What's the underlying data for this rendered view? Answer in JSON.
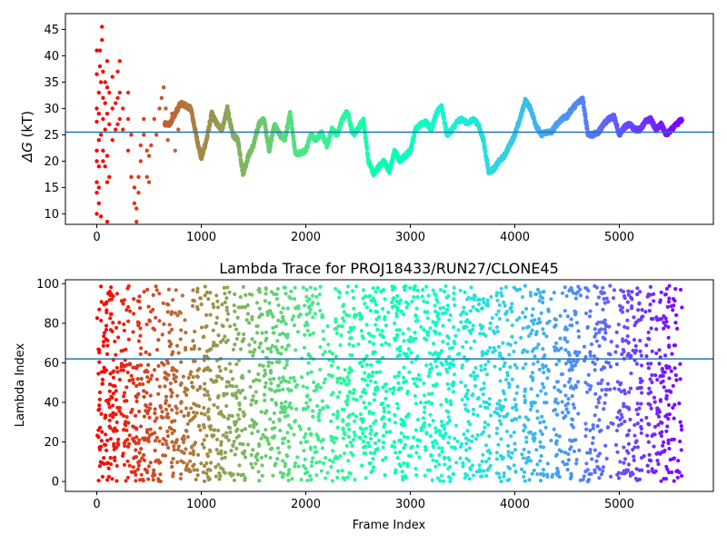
{
  "chart_data": [
    {
      "type": "scatter",
      "title": "",
      "xlabel": "",
      "ylabel": "ΔG (kT)",
      "ylabel_main": "ΔG",
      "ylabel_unit": " (kT)",
      "xlim": [
        -300,
        5900
      ],
      "ylim": [
        8,
        48
      ],
      "xticks": [
        0,
        1000,
        2000,
        3000,
        4000,
        5000
      ],
      "yticks": [
        10,
        15,
        20,
        25,
        30,
        35,
        40,
        45
      ],
      "reference_line": 25.5,
      "reference_line_color": "#1f77b4",
      "colormap": "rainbow (red at start, violet at end)",
      "x_range": [
        0,
        5600
      ],
      "trace_keypoints": [
        [
          0,
          28
        ],
        [
          100,
          27
        ],
        [
          200,
          28
        ],
        [
          300,
          24
        ],
        [
          400,
          22
        ],
        [
          500,
          25
        ],
        [
          600,
          27
        ],
        [
          700,
          27
        ],
        [
          800,
          31
        ],
        [
          900,
          30
        ],
        [
          950,
          25
        ],
        [
          1000,
          20.5
        ],
        [
          1050,
          24
        ],
        [
          1100,
          29
        ],
        [
          1150,
          27
        ],
        [
          1200,
          26
        ],
        [
          1250,
          30
        ],
        [
          1300,
          25
        ],
        [
          1350,
          24
        ],
        [
          1400,
          17.5
        ],
        [
          1450,
          21
        ],
        [
          1500,
          23
        ],
        [
          1550,
          27
        ],
        [
          1600,
          28
        ],
        [
          1650,
          22
        ],
        [
          1700,
          27
        ],
        [
          1750,
          25
        ],
        [
          1800,
          24
        ],
        [
          1850,
          29
        ],
        [
          1900,
          21.5
        ],
        [
          1950,
          21.5
        ],
        [
          2000,
          22
        ],
        [
          2050,
          25
        ],
        [
          2100,
          24
        ],
        [
          2150,
          25.5
        ],
        [
          2200,
          23
        ],
        [
          2250,
          26
        ],
        [
          2300,
          25
        ],
        [
          2350,
          28
        ],
        [
          2400,
          29.5
        ],
        [
          2450,
          25
        ],
        [
          2500,
          26
        ],
        [
          2550,
          28
        ],
        [
          2600,
          20
        ],
        [
          2650,
          17.5
        ],
        [
          2700,
          19
        ],
        [
          2750,
          20
        ],
        [
          2800,
          18
        ],
        [
          2850,
          22
        ],
        [
          2900,
          20
        ],
        [
          2950,
          21
        ],
        [
          3000,
          22
        ],
        [
          3050,
          26
        ],
        [
          3100,
          27
        ],
        [
          3150,
          27.5
        ],
        [
          3200,
          26
        ],
        [
          3250,
          29
        ],
        [
          3300,
          30.5
        ],
        [
          3350,
          25
        ],
        [
          3400,
          26
        ],
        [
          3450,
          27.5
        ],
        [
          3500,
          28
        ],
        [
          3550,
          27
        ],
        [
          3600,
          28
        ],
        [
          3650,
          27
        ],
        [
          3700,
          24
        ],
        [
          3750,
          18
        ],
        [
          3800,
          18.5
        ],
        [
          3850,
          20
        ],
        [
          3900,
          21
        ],
        [
          3950,
          23
        ],
        [
          4000,
          25
        ],
        [
          4050,
          28
        ],
        [
          4100,
          31.5
        ],
        [
          4150,
          30
        ],
        [
          4200,
          27
        ],
        [
          4250,
          25
        ],
        [
          4300,
          25.5
        ],
        [
          4350,
          25.5
        ],
        [
          4400,
          27
        ],
        [
          4450,
          28
        ],
        [
          4500,
          28.5
        ],
        [
          4550,
          30
        ],
        [
          4600,
          31
        ],
        [
          4650,
          32
        ],
        [
          4700,
          25
        ],
        [
          4750,
          25
        ],
        [
          4800,
          25.5
        ],
        [
          4850,
          27
        ],
        [
          4900,
          28
        ],
        [
          4950,
          28.5
        ],
        [
          5000,
          25
        ],
        [
          5050,
          26.5
        ],
        [
          5100,
          27
        ],
        [
          5150,
          26
        ],
        [
          5200,
          26
        ],
        [
          5250,
          27.5
        ],
        [
          5300,
          28
        ],
        [
          5350,
          26
        ],
        [
          5400,
          27
        ],
        [
          5450,
          25
        ],
        [
          5500,
          26
        ],
        [
          5550,
          27
        ],
        [
          5600,
          28
        ]
      ],
      "early_scatter_points": [
        [
          0,
          10
        ],
        [
          0,
          14
        ],
        [
          0,
          16
        ],
        [
          0,
          20
        ],
        [
          0,
          22
        ],
        [
          0,
          27.5
        ],
        [
          0,
          30
        ],
        [
          0,
          36.5
        ],
        [
          0,
          41
        ],
        [
          20,
          12
        ],
        [
          20,
          15
        ],
        [
          20,
          19
        ],
        [
          20,
          24
        ],
        [
          20,
          29
        ],
        [
          20,
          33
        ],
        [
          30,
          38
        ],
        [
          30,
          41
        ],
        [
          40,
          9.5
        ],
        [
          40,
          25
        ],
        [
          40,
          35
        ],
        [
          50,
          43
        ],
        [
          50,
          45.5
        ],
        [
          60,
          20
        ],
        [
          60,
          22
        ],
        [
          60,
          28
        ],
        [
          60,
          32
        ],
        [
          60,
          37
        ],
        [
          80,
          19
        ],
        [
          80,
          26
        ],
        [
          80,
          31
        ],
        [
          80,
          35
        ],
        [
          100,
          8.5
        ],
        [
          100,
          16
        ],
        [
          100,
          21
        ],
        [
          100,
          29
        ],
        [
          100,
          34
        ],
        [
          100,
          39
        ],
        [
          120,
          17
        ],
        [
          120,
          27
        ],
        [
          120,
          33
        ],
        [
          150,
          24
        ],
        [
          150,
          30
        ],
        [
          150,
          36
        ],
        [
          180,
          26
        ],
        [
          180,
          31
        ],
        [
          200,
          27
        ],
        [
          200,
          32
        ],
        [
          200,
          37
        ],
        [
          220,
          28
        ],
        [
          220,
          33
        ],
        [
          220,
          39
        ],
        [
          250,
          26
        ],
        [
          250,
          30
        ],
        [
          300,
          22
        ],
        [
          300,
          28
        ],
        [
          300,
          33
        ],
        [
          330,
          17
        ],
        [
          330,
          25
        ],
        [
          360,
          12
        ],
        [
          360,
          15
        ],
        [
          380,
          8.5
        ],
        [
          380,
          11
        ],
        [
          400,
          14
        ],
        [
          400,
          17
        ],
        [
          420,
          20
        ],
        [
          420,
          23
        ],
        [
          450,
          25
        ],
        [
          450,
          28
        ],
        [
          480,
          17
        ],
        [
          480,
          22
        ],
        [
          500,
          16
        ],
        [
          500,
          21
        ],
        [
          520,
          23
        ],
        [
          550,
          28
        ],
        [
          570,
          25
        ],
        [
          600,
          30
        ],
        [
          620,
          32
        ],
        [
          640,
          34
        ],
        [
          660,
          30
        ],
        [
          680,
          24
        ],
        [
          700,
          27
        ],
        [
          720,
          29
        ],
        [
          750,
          22
        ],
        [
          780,
          26
        ]
      ]
    },
    {
      "type": "scatter",
      "title": "Lambda Trace for PROJ18433/RUN27/CLONE45",
      "xlabel": "Frame Index",
      "ylabel": "Lambda Index",
      "xlim": [
        -300,
        5900
      ],
      "ylim": [
        -5,
        102
      ],
      "xticks": [
        0,
        1000,
        2000,
        3000,
        4000,
        5000
      ],
      "yticks": [
        0,
        20,
        40,
        60,
        80,
        100
      ],
      "reference_line": 62,
      "reference_line_color": "#1f77b4",
      "colormap": "rainbow (red at start, violet at end)",
      "x_range": [
        0,
        5600
      ],
      "lambda_range": [
        0,
        99
      ],
      "point_count": 5600
    }
  ]
}
